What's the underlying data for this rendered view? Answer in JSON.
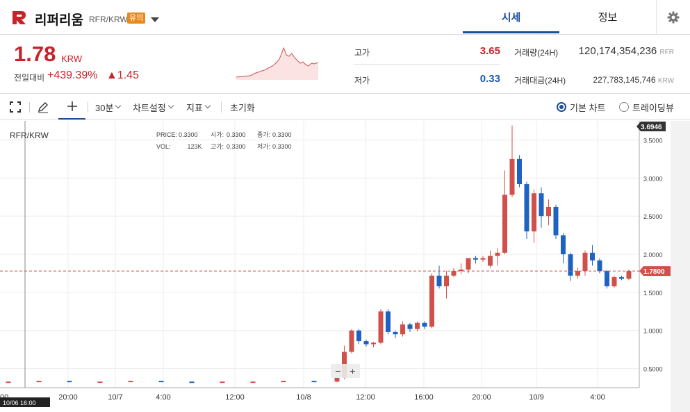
{
  "header": {
    "coin_name": "리퍼리움",
    "pair": "RFR/KRW",
    "warning_badge": "유의",
    "tabs": [
      {
        "label": "시세",
        "active": true
      },
      {
        "label": "정보",
        "active": false
      }
    ]
  },
  "summary": {
    "price": "1.78",
    "price_unit": "KRW",
    "change_label": "전일대비",
    "change_pct": "+439.39%",
    "change_abs": "▲1.45",
    "high_label": "고가",
    "high_value": "3.65",
    "low_label": "저가",
    "low_value": "0.33",
    "volume_label": "거래량(24H)",
    "volume_value": "120,174,354,236",
    "volume_unit": "RFR",
    "amount_label": "거래대금(24H)",
    "amount_value": "227,783,145,746",
    "amount_unit": "KRW"
  },
  "toolbar": {
    "interval": "30분",
    "chart_settings": "차트설정",
    "indicators": "지표",
    "reset": "초기화",
    "basic_chart": "기본 차트",
    "tradingview": "트레이딩뷰"
  },
  "chart": {
    "pair_label": "RFR/KRW",
    "ohlc": {
      "price_label": "PRICE:",
      "price_value": "0.3300",
      "open_label": "시가:",
      "open_value": "0.3300",
      "close_label": "종가:",
      "close_value": "0.3300",
      "vol_label": "VOL:",
      "vol_value": "123K",
      "high_label": "고가:",
      "high_value": "0.3300",
      "low_label": "저가:",
      "low_value": "0.3300"
    },
    "current_price_tag": "1.7800",
    "max_price_tag": "3.6946",
    "crosshair_time_tag": "10/06 16:00",
    "left_axis_fragment": "00",
    "colors": {
      "up": "#d0504a",
      "down": "#1f63c2",
      "grid": "#ececec"
    }
  },
  "chart_data": {
    "type": "candlestick",
    "y_ticks": [
      "0.5000",
      "1.0000",
      "1.5000",
      "2.0000",
      "2.5000",
      "3.0000",
      "3.5000"
    ],
    "x_ticks": [
      "20:00",
      "10/7",
      "4:00",
      "12:00",
      "10/8",
      "12:00",
      "16:00",
      "20:00",
      "10/9",
      "4:00"
    ],
    "ylim": [
      0.25,
      3.75
    ],
    "candles": [
      {
        "o": 0.33,
        "h": 0.33,
        "l": 0.33,
        "c": 0.33
      },
      {
        "o": 0.33,
        "h": 0.34,
        "l": 0.33,
        "c": 0.34
      },
      {
        "o": 0.34,
        "h": 0.34,
        "l": 0.33,
        "c": 0.33
      },
      {
        "o": 0.33,
        "h": 0.33,
        "l": 0.33,
        "c": 0.33
      },
      {
        "o": 0.33,
        "h": 0.34,
        "l": 0.33,
        "c": 0.34
      },
      {
        "o": 0.34,
        "h": 0.34,
        "l": 0.33,
        "c": 0.33
      },
      {
        "o": 0.33,
        "h": 0.33,
        "l": 0.32,
        "c": 0.32
      },
      {
        "o": 0.32,
        "h": 0.33,
        "l": 0.32,
        "c": 0.33
      },
      {
        "o": 0.33,
        "h": 0.33,
        "l": 0.33,
        "c": 0.33
      },
      {
        "o": 0.33,
        "h": 0.34,
        "l": 0.33,
        "c": 0.34
      },
      {
        "o": 0.34,
        "h": 0.34,
        "l": 0.33,
        "c": 0.33
      },
      {
        "o": 0.33,
        "h": 0.38,
        "l": 0.32,
        "c": 0.38
      },
      {
        "o": 0.38,
        "h": 0.8,
        "l": 0.36,
        "c": 0.72
      },
      {
        "o": 0.72,
        "h": 1.02,
        "l": 0.7,
        "c": 1.0
      },
      {
        "o": 1.0,
        "h": 1.02,
        "l": 0.82,
        "c": 0.86
      },
      {
        "o": 0.86,
        "h": 0.88,
        "l": 0.79,
        "c": 0.82
      },
      {
        "o": 0.82,
        "h": 0.85,
        "l": 0.78,
        "c": 0.84
      },
      {
        "o": 0.84,
        "h": 1.28,
        "l": 0.82,
        "c": 1.25
      },
      {
        "o": 1.25,
        "h": 1.28,
        "l": 0.95,
        "c": 0.98
      },
      {
        "o": 0.98,
        "h": 1.0,
        "l": 0.9,
        "c": 0.95
      },
      {
        "o": 0.95,
        "h": 1.12,
        "l": 0.92,
        "c": 1.08
      },
      {
        "o": 1.08,
        "h": 1.1,
        "l": 0.98,
        "c": 1.02
      },
      {
        "o": 1.02,
        "h": 1.12,
        "l": 0.99,
        "c": 1.1
      },
      {
        "o": 1.1,
        "h": 1.12,
        "l": 1.02,
        "c": 1.05
      },
      {
        "o": 1.05,
        "h": 1.75,
        "l": 1.03,
        "c": 1.72
      },
      {
        "o": 1.72,
        "h": 1.85,
        "l": 1.55,
        "c": 1.58
      },
      {
        "o": 1.58,
        "h": 1.78,
        "l": 1.42,
        "c": 1.72
      },
      {
        "o": 1.72,
        "h": 1.82,
        "l": 1.7,
        "c": 1.78
      },
      {
        "o": 1.78,
        "h": 1.88,
        "l": 1.74,
        "c": 1.8
      },
      {
        "o": 1.8,
        "h": 1.95,
        "l": 1.75,
        "c": 1.95
      },
      {
        "o": 1.95,
        "h": 1.98,
        "l": 1.88,
        "c": 1.93
      },
      {
        "o": 1.93,
        "h": 1.98,
        "l": 1.9,
        "c": 1.95
      },
      {
        "o": 1.85,
        "h": 2.05,
        "l": 1.82,
        "c": 1.98
      },
      {
        "o": 1.98,
        "h": 2.08,
        "l": 1.85,
        "c": 2.02
      },
      {
        "o": 2.02,
        "h": 3.1,
        "l": 2.0,
        "c": 2.78
      },
      {
        "o": 2.78,
        "h": 3.69,
        "l": 2.75,
        "c": 3.25
      },
      {
        "o": 3.25,
        "h": 3.3,
        "l": 2.88,
        "c": 2.92
      },
      {
        "o": 2.92,
        "h": 2.95,
        "l": 2.2,
        "c": 2.3
      },
      {
        "o": 2.3,
        "h": 2.85,
        "l": 2.15,
        "c": 2.8
      },
      {
        "o": 2.8,
        "h": 2.88,
        "l": 2.35,
        "c": 2.5
      },
      {
        "o": 2.5,
        "h": 2.72,
        "l": 2.38,
        "c": 2.62
      },
      {
        "o": 2.62,
        "h": 2.65,
        "l": 2.2,
        "c": 2.25
      },
      {
        "o": 2.25,
        "h": 2.28,
        "l": 1.88,
        "c": 2.0
      },
      {
        "o": 2.0,
        "h": 2.02,
        "l": 1.65,
        "c": 1.72
      },
      {
        "o": 1.72,
        "h": 1.82,
        "l": 1.68,
        "c": 1.78
      },
      {
        "o": 1.78,
        "h": 2.05,
        "l": 1.72,
        "c": 2.02
      },
      {
        "o": 2.02,
        "h": 2.12,
        "l": 1.85,
        "c": 1.92
      },
      {
        "o": 1.92,
        "h": 1.95,
        "l": 1.75,
        "c": 1.78
      },
      {
        "o": 1.78,
        "h": 1.8,
        "l": 1.55,
        "c": 1.58
      },
      {
        "o": 1.58,
        "h": 1.72,
        "l": 1.56,
        "c": 1.7
      },
      {
        "o": 1.7,
        "h": 1.72,
        "l": 1.66,
        "c": 1.68
      },
      {
        "o": 1.68,
        "h": 1.8,
        "l": 1.66,
        "c": 1.78
      }
    ]
  }
}
